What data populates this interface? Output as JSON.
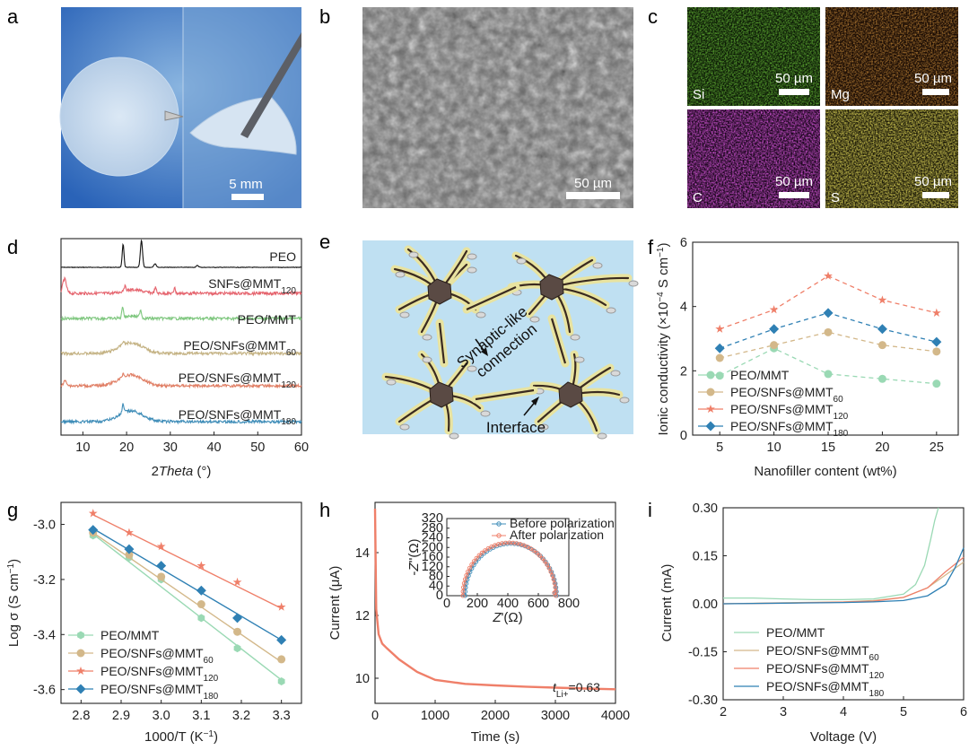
{
  "panel_labels": [
    "a",
    "b",
    "c",
    "d",
    "e",
    "f",
    "g",
    "h",
    "i"
  ],
  "panel_a": {
    "scale_label": "5 mm"
  },
  "panel_b": {
    "scale_label": "50 µm"
  },
  "panel_c": {
    "maps": [
      {
        "element": "Si",
        "scale_label": "50 µm",
        "color": "#2f9a10"
      },
      {
        "element": "Mg",
        "scale_label": "50 µm",
        "color": "#d35a10"
      },
      {
        "element": "C",
        "scale_label": "50 µm",
        "color": "#b018b8"
      },
      {
        "element": "S",
        "scale_label": "50 µm",
        "color": "#b8a81a"
      }
    ]
  },
  "panel_e": {
    "labels": {
      "connection_line1": "Synaptic-like",
      "connection_line2": "connection",
      "interface": "Interface"
    }
  },
  "chart_data": [
    {
      "panel": "d",
      "type": "line",
      "xlabel_prefix": "2",
      "xlabel_italic": "Theta",
      "xlabel_suffix": " (°)",
      "xlim": [
        5,
        60
      ],
      "xticks": [
        10,
        20,
        30,
        40,
        50,
        60
      ],
      "traces": [
        {
          "label": "PEO",
          "sub": "",
          "color": "#111111"
        },
        {
          "label": "SNFs@MMT",
          "sub": "120",
          "color": "#e5636d"
        },
        {
          "label": "PEO/MMT",
          "sub": "",
          "color": "#7fc77f"
        },
        {
          "label": "PEO/SNFs@MMT",
          "sub": "60",
          "color": "#c4b283"
        },
        {
          "label": "PEO/SNFs@MMT",
          "sub": "120",
          "color": "#e07e64"
        },
        {
          "label": "PEO/SNFs@MMT",
          "sub": "180",
          "color": "#3f8db8"
        }
      ]
    },
    {
      "panel": "f",
      "type": "line",
      "xlabel": "Nanofiller content (wt%)",
      "ylabel_parts": [
        "Ionic conductivity (×10",
        "−4",
        " S cm",
        "−1",
        ")"
      ],
      "x": [
        5,
        10,
        15,
        20,
        25
      ],
      "xlim": [
        2.5,
        27
      ],
      "ylim": [
        0,
        6
      ],
      "xticks": [
        5,
        10,
        15,
        20,
        25
      ],
      "yticks": [
        0,
        2,
        4,
        6
      ],
      "legend_position": "bottom-left",
      "series": [
        {
          "name": "PEO/MMT",
          "sub": "",
          "color": "#9ad9b4",
          "marker": "circle",
          "values": [
            1.85,
            2.7,
            1.9,
            1.75,
            1.6
          ]
        },
        {
          "name": "PEO/SNFs@MMT",
          "sub": "60",
          "color": "#d3b88a",
          "marker": "circle",
          "values": [
            2.4,
            2.8,
            3.2,
            2.8,
            2.6
          ]
        },
        {
          "name": "PEO/SNFs@MMT",
          "sub": "120",
          "color": "#ef7f69",
          "marker": "star",
          "values": [
            3.3,
            3.9,
            4.95,
            4.2,
            3.8
          ]
        },
        {
          "name": "PEO/SNFs@MMT",
          "sub": "180",
          "color": "#2f80b4",
          "marker": "diamond",
          "values": [
            2.7,
            3.3,
            3.8,
            3.3,
            2.9
          ]
        }
      ]
    },
    {
      "panel": "g",
      "type": "line",
      "xlabel_parts": [
        "1000/T (K",
        "−1",
        ")"
      ],
      "ylabel_parts": [
        "Log σ (S cm",
        "−1",
        ")"
      ],
      "x": [
        2.83,
        2.92,
        3.0,
        3.1,
        3.19,
        3.3
      ],
      "xlim": [
        2.75,
        3.35
      ],
      "ylim": [
        -3.65,
        -2.92
      ],
      "xticks": [
        2.8,
        2.9,
        3.0,
        3.1,
        3.2,
        3.3
      ],
      "yticks": [
        -3.0,
        -3.2,
        -3.4,
        -3.6
      ],
      "ytick_labels": [
        "-3.0",
        "-3.2",
        "-3.4",
        "-3.6"
      ],
      "legend_position": "bottom-left",
      "series": [
        {
          "name": "PEO/MMT",
          "sub": "",
          "color": "#9ad9b4",
          "marker": "hexagon",
          "values": [
            -3.04,
            -3.12,
            -3.2,
            -3.34,
            -3.45,
            -3.57
          ],
          "fit": [
            -3.035,
            -3.565
          ]
        },
        {
          "name": "PEO/SNFs@MMT",
          "sub": "60",
          "color": "#d3b88a",
          "marker": "circle",
          "values": [
            -3.03,
            -3.11,
            -3.19,
            -3.29,
            -3.39,
            -3.49
          ],
          "fit": [
            -3.03,
            -3.5
          ]
        },
        {
          "name": "PEO/SNFs@MMT",
          "sub": "120",
          "color": "#ef7f69",
          "marker": "star",
          "values": [
            -2.96,
            -3.03,
            -3.08,
            -3.15,
            -3.21,
            -3.3
          ],
          "fit": [
            -2.965,
            -3.305
          ]
        },
        {
          "name": "PEO/SNFs@MMT",
          "sub": "180",
          "color": "#2f80b4",
          "marker": "diamond",
          "values": [
            -3.02,
            -3.09,
            -3.15,
            -3.24,
            -3.34,
            -3.42
          ],
          "fit": [
            -3.015,
            -3.42
          ]
        }
      ]
    },
    {
      "panel": "h",
      "type": "line",
      "xlabel": "Time (s)",
      "ylabel": "Current (μA)",
      "xlim": [
        0,
        4000
      ],
      "ylim": [
        9.2,
        15.6
      ],
      "xticks": [
        0,
        1000,
        2000,
        3000,
        4000
      ],
      "yticks": [
        10,
        12,
        14
      ],
      "color": "#ef7f69",
      "x": [
        0,
        20,
        60,
        120,
        200,
        400,
        700,
        1000,
        1500,
        2000,
        2500,
        3000,
        3500,
        4000
      ],
      "values": [
        15.4,
        12.2,
        11.4,
        11.1,
        10.95,
        10.6,
        10.2,
        9.95,
        9.82,
        9.77,
        9.73,
        9.7,
        9.67,
        9.65
      ],
      "annotation": {
        "t_label": "t",
        "t_sub": "Li+",
        "value": "=0.63"
      },
      "inset": {
        "xlabel_italic": "Z",
        "xlabel_suffix": "'(Ω)",
        "ylabel_prefix": "-",
        "ylabel_italic": "Z",
        "ylabel_suffix": "''(Ω)",
        "xlim": [
          0,
          800
        ],
        "ylim": [
          0,
          320
        ],
        "xticks": [
          0,
          200,
          400,
          600,
          800
        ],
        "yticks": [
          0,
          40,
          80,
          120,
          160,
          200,
          240,
          280,
          320
        ],
        "series": [
          {
            "name": "Before polarization",
            "color": "#3f8db8",
            "center": 420,
            "radius": 300
          },
          {
            "name": "After polarization",
            "color": "#ef7f69",
            "center": 410,
            "radius": 305
          }
        ]
      }
    },
    {
      "panel": "i",
      "type": "line",
      "xlabel": "Voltage (V)",
      "ylabel": "Current (mA)",
      "xlim": [
        2,
        6
      ],
      "ylim": [
        -0.3,
        0.3
      ],
      "xticks": [
        2,
        3,
        4,
        5,
        6
      ],
      "yticks": [
        0.3,
        0.15,
        0.0,
        -0.15,
        -0.3
      ],
      "ytick_labels": [
        "0.30",
        "0.15",
        "0.00",
        "-0.15",
        "-0.30"
      ],
      "legend_position": "bottom-left",
      "series": [
        {
          "name": "PEO/MMT",
          "sub": "",
          "color": "#9ad9b4",
          "x": [
            2,
            2.5,
            3,
            3.5,
            4,
            4.5,
            5,
            5.2,
            5.35,
            5.45,
            5.52,
            5.58
          ],
          "y": [
            0.018,
            0.018,
            0.015,
            0.013,
            0.013,
            0.015,
            0.03,
            0.06,
            0.12,
            0.2,
            0.26,
            0.3
          ]
        },
        {
          "name": "PEO/SNFs@MMT",
          "sub": "60",
          "color": "#d3b88a",
          "x": [
            2,
            3,
            4,
            4.5,
            5,
            5.4,
            5.7,
            6
          ],
          "y": [
            0.0,
            0.003,
            0.006,
            0.01,
            0.02,
            0.05,
            0.09,
            0.13
          ]
        },
        {
          "name": "PEO/SNFs@MMT",
          "sub": "120",
          "color": "#ef7f69",
          "x": [
            2,
            3,
            4,
            4.5,
            5,
            5.4,
            5.7,
            6
          ],
          "y": [
            0.0,
            0.002,
            0.005,
            0.008,
            0.02,
            0.05,
            0.1,
            0.145
          ]
        },
        {
          "name": "PEO/SNFs@MMT",
          "sub": "180",
          "color": "#2f80b4",
          "x": [
            2,
            3,
            4,
            4.5,
            5,
            5.4,
            5.7,
            5.85,
            6
          ],
          "y": [
            0.0,
            0.002,
            0.004,
            0.006,
            0.01,
            0.025,
            0.06,
            0.11,
            0.175
          ]
        }
      ]
    }
  ]
}
